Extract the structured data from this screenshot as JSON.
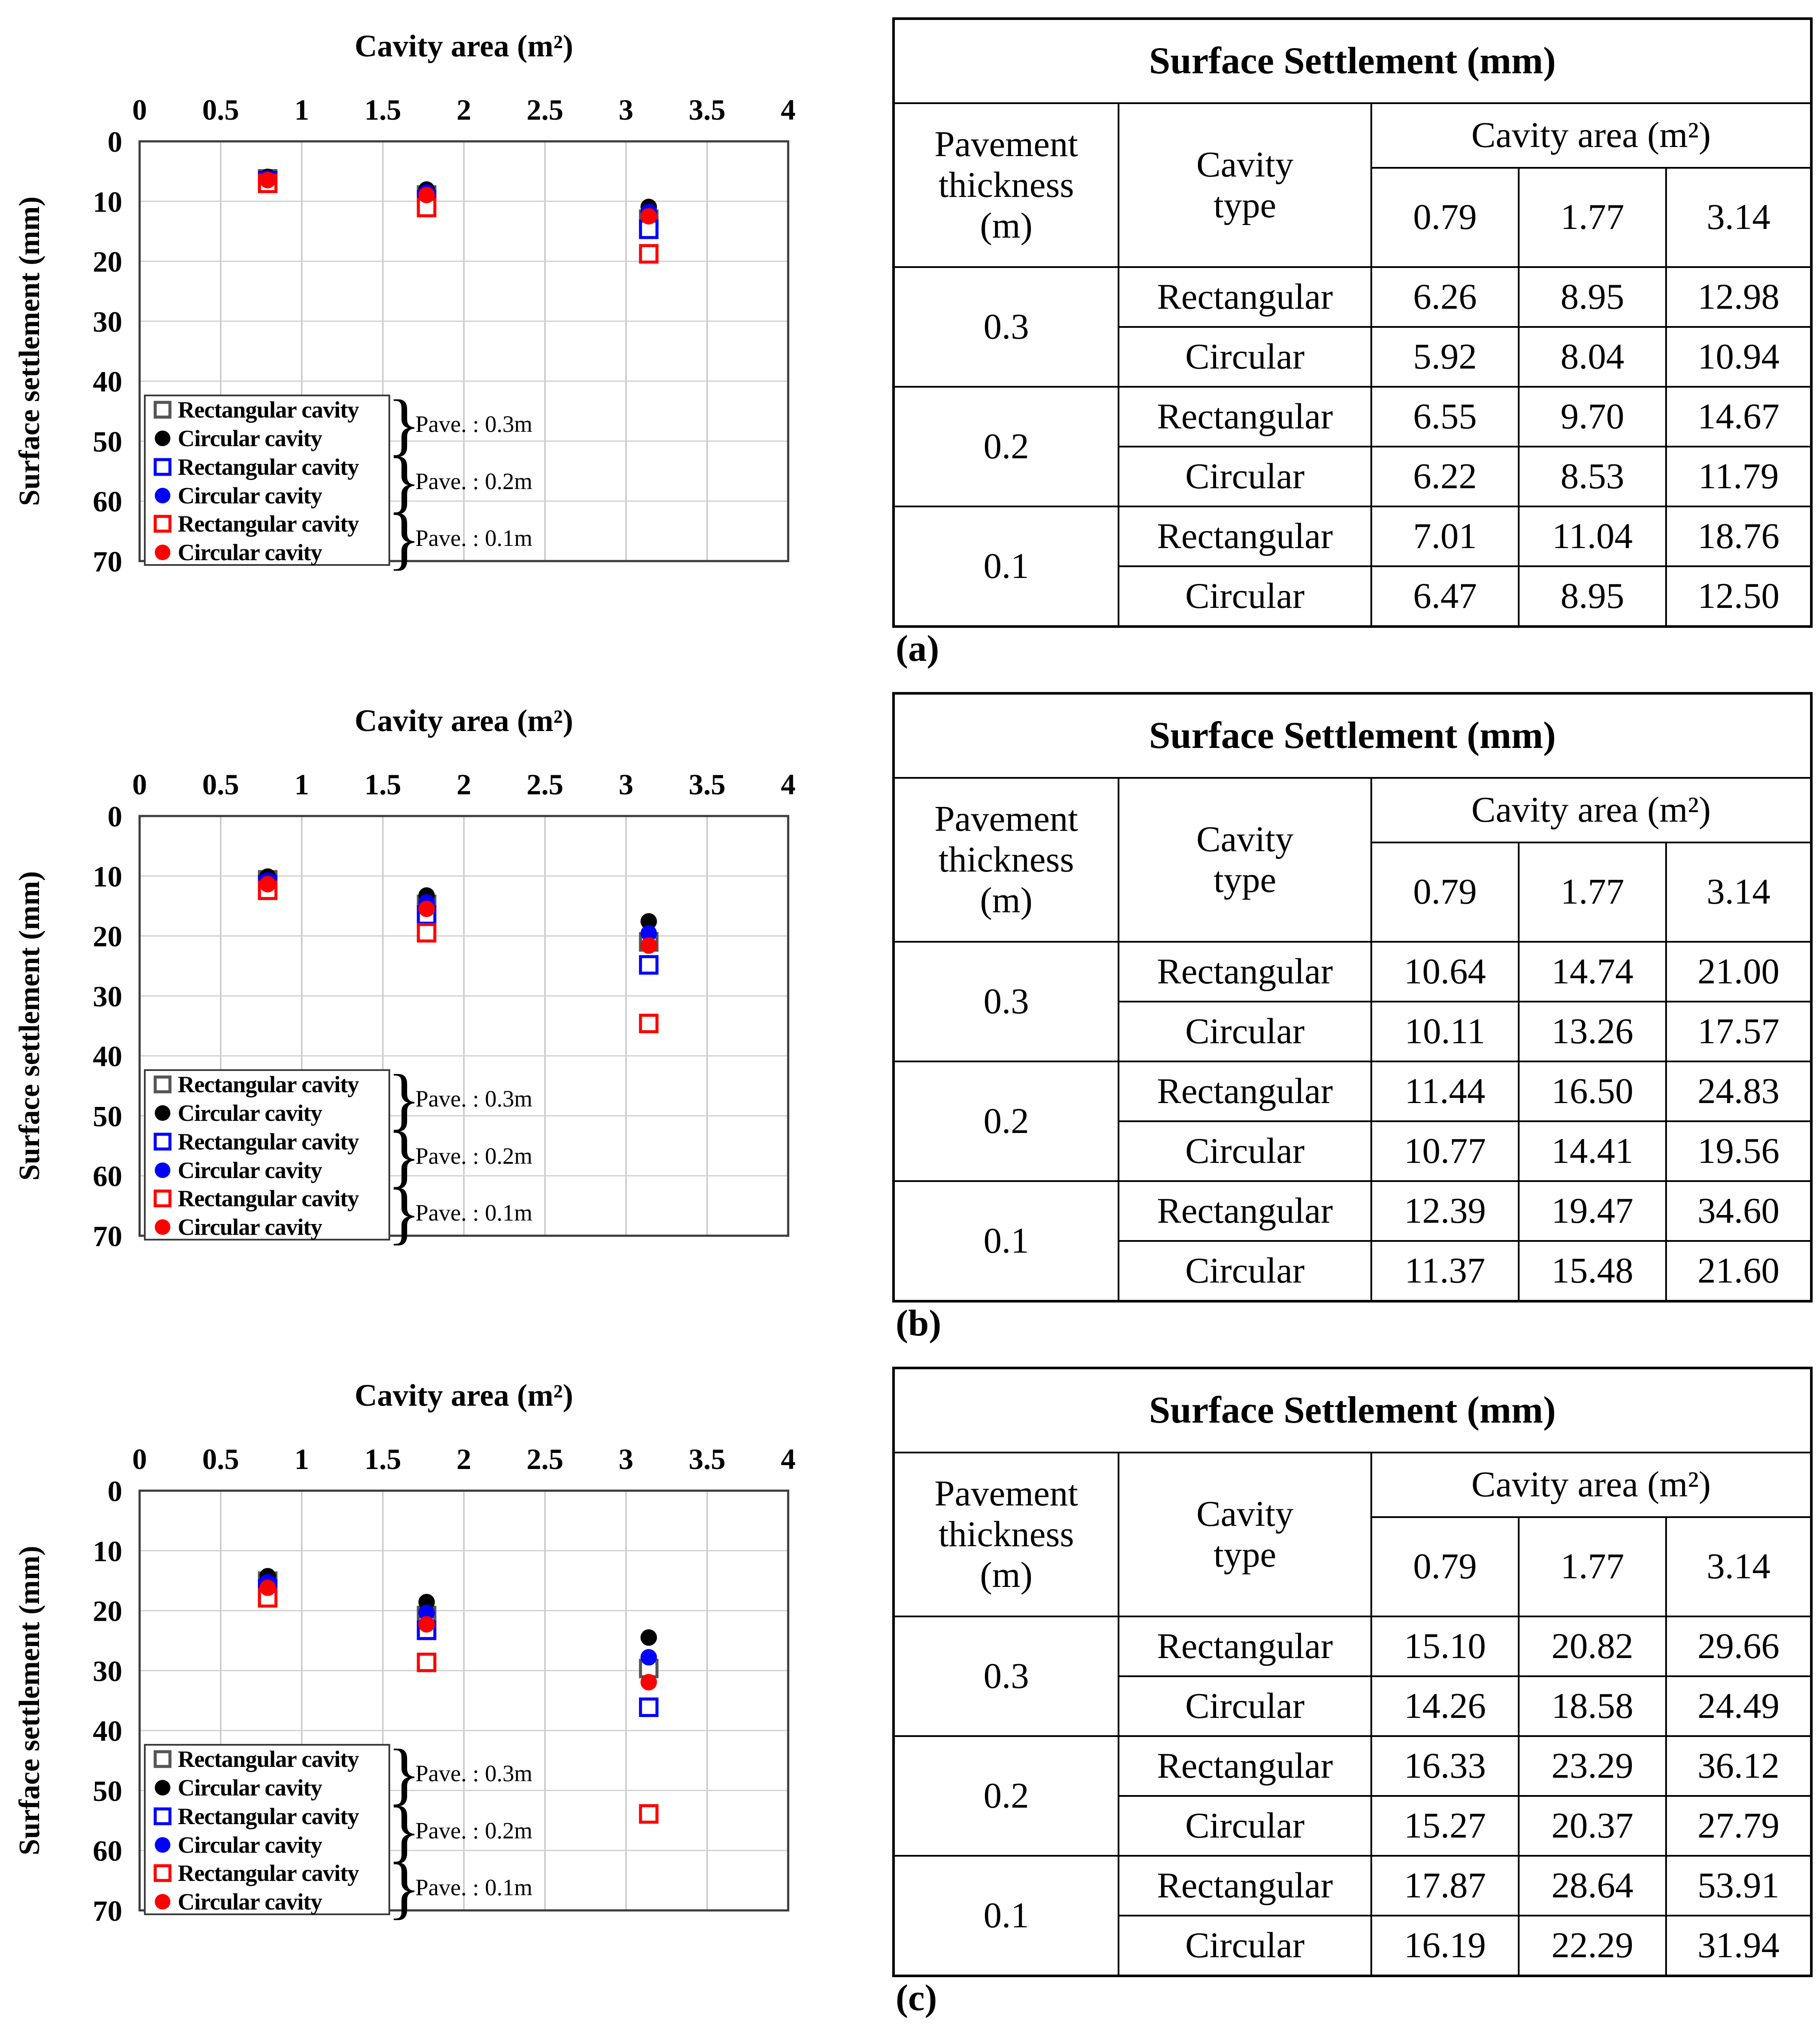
{
  "axis": {
    "x_title": "Cavity area (m²)",
    "y_title": "Surface settlement (mm)",
    "x_ticks": [
      "0",
      "0.5",
      "1",
      "1.5",
      "2",
      "2.5",
      "3",
      "3.5",
      "4"
    ],
    "y_ticks": [
      "0",
      "10",
      "20",
      "30",
      "40",
      "50",
      "60",
      "70"
    ]
  },
  "legend": {
    "entries": [
      {
        "label": "Rectangular cavity",
        "marker": "open-square",
        "color": "#555555"
      },
      {
        "label": "Circular cavity",
        "marker": "filled-circle",
        "color": "#000000"
      },
      {
        "label": "Rectangular cavity",
        "marker": "open-square",
        "color": "#0000ff"
      },
      {
        "label": "Circular cavity",
        "marker": "filled-circle",
        "color": "#0000ff"
      },
      {
        "label": "Rectangular cavity",
        "marker": "open-square",
        "color": "#ff0000"
      },
      {
        "label": "Circular cavity",
        "marker": "filled-circle",
        "color": "#ff0000"
      }
    ],
    "groups": [
      "Pave. : 0.3m",
      "Pave. : 0.2m",
      "Pave. : 0.1m"
    ]
  },
  "chart_data": [
    {
      "type": "scatter",
      "panel": "a",
      "xlabel": "Cavity area (m²)",
      "ylabel": "Surface settlement (mm)",
      "x": [
        0.79,
        1.77,
        3.14
      ],
      "xlim": [
        0,
        4
      ],
      "ylim": [
        0,
        70
      ],
      "y_inverted": true,
      "x_axis_position": "top",
      "grid": true,
      "xticks": [
        0,
        0.5,
        1,
        1.5,
        2,
        2.5,
        3,
        3.5,
        4
      ],
      "yticks": [
        0,
        10,
        20,
        30,
        40,
        50,
        60,
        70
      ],
      "legend_position": "bottom-left",
      "series": [
        {
          "name": "Rectangular cavity",
          "pavement": "0.3",
          "marker": "open-square",
          "color": "#555555",
          "values": [
            6.26,
            8.95,
            12.98
          ]
        },
        {
          "name": "Circular cavity",
          "pavement": "0.3",
          "marker": "filled-circle",
          "color": "#000000",
          "values": [
            5.92,
            8.04,
            10.94
          ]
        },
        {
          "name": "Rectangular cavity",
          "pavement": "0.2",
          "marker": "open-square",
          "color": "#0000ff",
          "values": [
            6.55,
            9.7,
            14.67
          ]
        },
        {
          "name": "Circular cavity",
          "pavement": "0.2",
          "marker": "filled-circle",
          "color": "#0000ff",
          "values": [
            6.22,
            8.53,
            11.79
          ]
        },
        {
          "name": "Rectangular cavity",
          "pavement": "0.1",
          "marker": "open-square",
          "color": "#ff0000",
          "values": [
            7.01,
            11.04,
            18.76
          ]
        },
        {
          "name": "Circular cavity",
          "pavement": "0.1",
          "marker": "filled-circle",
          "color": "#ff0000",
          "values": [
            6.47,
            8.95,
            12.5
          ]
        }
      ]
    },
    {
      "type": "scatter",
      "panel": "b",
      "xlabel": "Cavity area (m²)",
      "ylabel": "Surface settlement (mm)",
      "x": [
        0.79,
        1.77,
        3.14
      ],
      "xlim": [
        0,
        4
      ],
      "ylim": [
        0,
        70
      ],
      "y_inverted": true,
      "x_axis_position": "top",
      "grid": true,
      "xticks": [
        0,
        0.5,
        1,
        1.5,
        2,
        2.5,
        3,
        3.5,
        4
      ],
      "yticks": [
        0,
        10,
        20,
        30,
        40,
        50,
        60,
        70
      ],
      "legend_position": "bottom-left",
      "series": [
        {
          "name": "Rectangular cavity",
          "pavement": "0.3",
          "marker": "open-square",
          "color": "#555555",
          "values": [
            10.64,
            14.74,
            21.0
          ]
        },
        {
          "name": "Circular cavity",
          "pavement": "0.3",
          "marker": "filled-circle",
          "color": "#000000",
          "values": [
            10.11,
            13.26,
            17.57
          ]
        },
        {
          "name": "Rectangular cavity",
          "pavement": "0.2",
          "marker": "open-square",
          "color": "#0000ff",
          "values": [
            11.44,
            16.5,
            24.83
          ]
        },
        {
          "name": "Circular cavity",
          "pavement": "0.2",
          "marker": "filled-circle",
          "color": "#0000ff",
          "values": [
            10.77,
            14.41,
            19.56
          ]
        },
        {
          "name": "Rectangular cavity",
          "pavement": "0.1",
          "marker": "open-square",
          "color": "#ff0000",
          "values": [
            12.39,
            19.47,
            34.6
          ]
        },
        {
          "name": "Circular cavity",
          "pavement": "0.1",
          "marker": "filled-circle",
          "color": "#ff0000",
          "values": [
            11.37,
            15.48,
            21.6
          ]
        }
      ]
    },
    {
      "type": "scatter",
      "panel": "c",
      "xlabel": "Cavity area (m²)",
      "ylabel": "Surface settlement (mm)",
      "x": [
        0.79,
        1.77,
        3.14
      ],
      "xlim": [
        0,
        4
      ],
      "ylim": [
        0,
        70
      ],
      "y_inverted": true,
      "x_axis_position": "top",
      "grid": true,
      "xticks": [
        0,
        0.5,
        1,
        1.5,
        2,
        2.5,
        3,
        3.5,
        4
      ],
      "yticks": [
        0,
        10,
        20,
        30,
        40,
        50,
        60,
        70
      ],
      "legend_position": "bottom-left",
      "series": [
        {
          "name": "Rectangular cavity",
          "pavement": "0.3",
          "marker": "open-square",
          "color": "#555555",
          "values": [
            15.1,
            20.82,
            29.66
          ]
        },
        {
          "name": "Circular cavity",
          "pavement": "0.3",
          "marker": "filled-circle",
          "color": "#000000",
          "values": [
            14.26,
            18.58,
            24.49
          ]
        },
        {
          "name": "Rectangular cavity",
          "pavement": "0.2",
          "marker": "open-square",
          "color": "#0000ff",
          "values": [
            16.33,
            23.29,
            36.12
          ]
        },
        {
          "name": "Circular cavity",
          "pavement": "0.2",
          "marker": "filled-circle",
          "color": "#0000ff",
          "values": [
            15.27,
            20.37,
            27.79
          ]
        },
        {
          "name": "Rectangular cavity",
          "pavement": "0.1",
          "marker": "open-square",
          "color": "#ff0000",
          "values": [
            17.87,
            28.64,
            53.91
          ]
        },
        {
          "name": "Circular cavity",
          "pavement": "0.1",
          "marker": "filled-circle",
          "color": "#ff0000",
          "values": [
            16.19,
            22.29,
            31.94
          ]
        }
      ]
    }
  ],
  "tables": [
    {
      "panel_label": "(a)",
      "title": "Surface Settlement (mm)",
      "row_header": "Pavement\nthickness\n(m)",
      "type_header": "Cavity\ntype",
      "area_header": "Cavity area (m²)",
      "area_columns": [
        "0.79",
        "1.77",
        "3.14"
      ],
      "groups": [
        {
          "thickness": "0.3",
          "rows": [
            {
              "type": "Rectangular",
              "values": [
                "6.26",
                "8.95",
                "12.98"
              ]
            },
            {
              "type": "Circular",
              "values": [
                "5.92",
                "8.04",
                "10.94"
              ]
            }
          ]
        },
        {
          "thickness": "0.2",
          "rows": [
            {
              "type": "Rectangular",
              "values": [
                "6.55",
                "9.70",
                "14.67"
              ]
            },
            {
              "type": "Circular",
              "values": [
                "6.22",
                "8.53",
                "11.79"
              ]
            }
          ]
        },
        {
          "thickness": "0.1",
          "rows": [
            {
              "type": "Rectangular",
              "values": [
                "7.01",
                "11.04",
                "18.76"
              ]
            },
            {
              "type": "Circular",
              "values": [
                "6.47",
                "8.95",
                "12.50"
              ]
            }
          ]
        }
      ]
    },
    {
      "panel_label": "(b)",
      "title": "Surface Settlement (mm)",
      "row_header": "Pavement\nthickness\n(m)",
      "type_header": "Cavity\ntype",
      "area_header": "Cavity area (m²)",
      "area_columns": [
        "0.79",
        "1.77",
        "3.14"
      ],
      "groups": [
        {
          "thickness": "0.3",
          "rows": [
            {
              "type": "Rectangular",
              "values": [
                "10.64",
                "14.74",
                "21.00"
              ]
            },
            {
              "type": "Circular",
              "values": [
                "10.11",
                "13.26",
                "17.57"
              ]
            }
          ]
        },
        {
          "thickness": "0.2",
          "rows": [
            {
              "type": "Rectangular",
              "values": [
                "11.44",
                "16.50",
                "24.83"
              ]
            },
            {
              "type": "Circular",
              "values": [
                "10.77",
                "14.41",
                "19.56"
              ]
            }
          ]
        },
        {
          "thickness": "0.1",
          "rows": [
            {
              "type": "Rectangular",
              "values": [
                "12.39",
                "19.47",
                "34.60"
              ]
            },
            {
              "type": "Circular",
              "values": [
                "11.37",
                "15.48",
                "21.60"
              ]
            }
          ]
        }
      ]
    },
    {
      "panel_label": "(c)",
      "title": "Surface Settlement (mm)",
      "row_header": "Pavement\nthickness\n(m)",
      "type_header": "Cavity\ntype",
      "area_header": "Cavity area (m²)",
      "area_columns": [
        "0.79",
        "1.77",
        "3.14"
      ],
      "groups": [
        {
          "thickness": "0.3",
          "rows": [
            {
              "type": "Rectangular",
              "values": [
                "15.10",
                "20.82",
                "29.66"
              ]
            },
            {
              "type": "Circular",
              "values": [
                "14.26",
                "18.58",
                "24.49"
              ]
            }
          ]
        },
        {
          "thickness": "0.2",
          "rows": [
            {
              "type": "Rectangular",
              "values": [
                "16.33",
                "23.29",
                "36.12"
              ]
            },
            {
              "type": "Circular",
              "values": [
                "15.27",
                "20.37",
                "27.79"
              ]
            }
          ]
        },
        {
          "thickness": "0.1",
          "rows": [
            {
              "type": "Rectangular",
              "values": [
                "17.87",
                "28.64",
                "53.91"
              ]
            },
            {
              "type": "Circular",
              "values": [
                "16.19",
                "22.29",
                "31.94"
              ]
            }
          ]
        }
      ]
    }
  ]
}
